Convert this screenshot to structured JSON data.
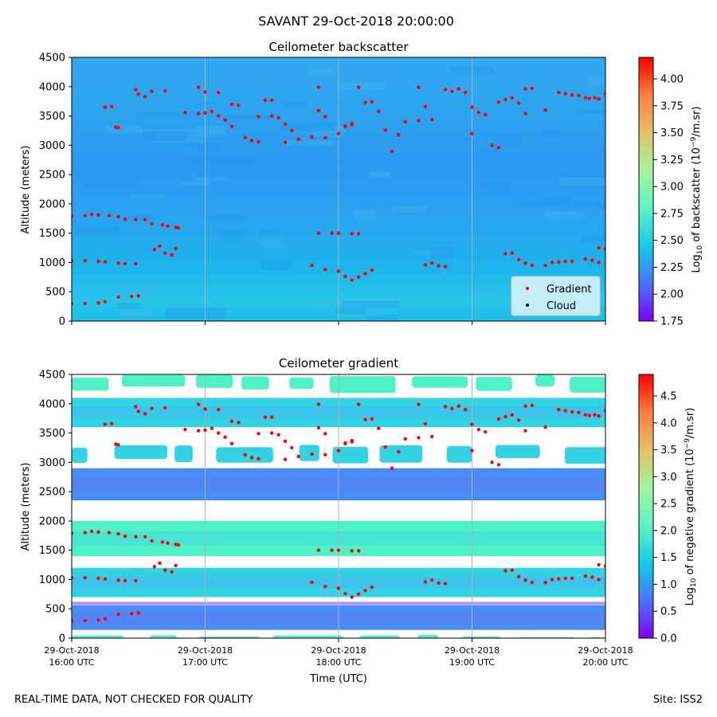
{
  "figure": {
    "suptitle": "SAVANT 29-Oct-2018 20:00:00",
    "footer_left": "REAL-TIME DATA, NOT CHECKED FOR QUALITY",
    "footer_right": "Site: ISS2"
  },
  "colors": {
    "marker_gradient": "#ff0000",
    "marker_cloud": "#000000",
    "colormap": [
      "#8000ff",
      "#4a71fb",
      "#15c9eb",
      "#5ef4c4",
      "#a2f59b",
      "#e4c26a",
      "#ff7d3f",
      "#ff0000"
    ],
    "no_data": "#ffffff"
  },
  "chart_data": [
    {
      "type": "heatmap",
      "title": "Ceilometer backscatter",
      "ylabel": "Altitude (meters)",
      "xlabel": "",
      "xlim": [
        "29-Oct-2018 16:00 UTC",
        "29-Oct-2018 20:00 UTC"
      ],
      "ylim": [
        0,
        4500
      ],
      "yticks": [
        "0",
        "500",
        "1000",
        "1500",
        "2000",
        "2500",
        "3000",
        "3500",
        "4000",
        "4500"
      ],
      "vertical_gridlines_at": [
        "17:00",
        "18:00",
        "19:00"
      ],
      "colorbar": {
        "label": "Log10 of backscatter (10^-9/m.sr)",
        "label_parts": {
          "pre": "Log",
          "sub": "10",
          "mid": " of backscatter (10",
          "sup": "−9",
          "post": "/m.sr)"
        },
        "range": [
          1.75,
          4.2
        ],
        "ticks": [
          "1.75",
          "2.00",
          "2.25",
          "2.50",
          "2.75",
          "3.00",
          "3.25",
          "3.50",
          "3.75",
          "4.00"
        ]
      },
      "field_description": "mostly 2.25-2.50 throughout, slightly higher near 0-200 m and around 600-1000 m",
      "legend": {
        "placement": "lower-right",
        "entries": [
          "Gradient",
          "Cloud"
        ]
      },
      "series": [
        {
          "name": "Gradient",
          "marker": "dot",
          "points_hours_alt": [
            [
              0.0,
              300
            ],
            [
              0.1,
              300
            ],
            [
              0.2,
              310
            ],
            [
              0.25,
              330
            ],
            [
              0.35,
              410
            ],
            [
              0.45,
              420
            ],
            [
              0.5,
              430
            ],
            [
              0.0,
              1030
            ],
            [
              0.1,
              1030
            ],
            [
              0.2,
              1020
            ],
            [
              0.25,
              1010
            ],
            [
              0.35,
              990
            ],
            [
              0.4,
              980
            ],
            [
              0.48,
              980
            ],
            [
              0.0,
              1790
            ],
            [
              0.1,
              1800
            ],
            [
              0.15,
              1820
            ],
            [
              0.2,
              1810
            ],
            [
              0.28,
              1800
            ],
            [
              0.35,
              1780
            ],
            [
              0.4,
              1740
            ],
            [
              0.48,
              1730
            ],
            [
              0.55,
              1730
            ],
            [
              0.6,
              1660
            ],
            [
              0.68,
              1640
            ],
            [
              0.72,
              1620
            ],
            [
              0.78,
              1600
            ],
            [
              0.8,
              1590
            ],
            [
              0.62,
              1220
            ],
            [
              0.66,
              1280
            ],
            [
              0.7,
              1160
            ],
            [
              0.75,
              1130
            ],
            [
              0.78,
              1240
            ],
            [
              0.25,
              3650
            ],
            [
              0.3,
              3660
            ],
            [
              0.33,
              3310
            ],
            [
              0.35,
              3300
            ],
            [
              0.48,
              3950
            ],
            [
              0.5,
              3870
            ],
            [
              0.55,
              3830
            ],
            [
              0.6,
              3920
            ],
            [
              0.7,
              3930
            ],
            [
              0.85,
              3560
            ],
            [
              0.95,
              3540
            ],
            [
              1.0,
              3550
            ],
            [
              1.05,
              3580
            ],
            [
              1.1,
              3500
            ],
            [
              1.15,
              3430
            ],
            [
              1.2,
              3320
            ],
            [
              0.95,
              3990
            ],
            [
              1.0,
              3910
            ],
            [
              1.1,
              3900
            ],
            [
              1.2,
              3700
            ],
            [
              1.25,
              3680
            ],
            [
              1.3,
              3130
            ],
            [
              1.35,
              3080
            ],
            [
              1.4,
              3060
            ],
            [
              1.4,
              3490
            ],
            [
              1.5,
              3500
            ],
            [
              1.55,
              3470
            ],
            [
              1.6,
              3360
            ],
            [
              1.65,
              3250
            ],
            [
              1.45,
              3770
            ],
            [
              1.5,
              3770
            ],
            [
              1.6,
              3050
            ],
            [
              1.7,
              3100
            ],
            [
              1.8,
              3140
            ],
            [
              1.9,
              3130
            ],
            [
              2.0,
              3200
            ],
            [
              2.05,
              3320
            ],
            [
              2.1,
              3350
            ],
            [
              1.85,
              3590
            ],
            [
              1.9,
              3490
            ],
            [
              1.85,
              3990
            ],
            [
              1.8,
              950
            ],
            [
              1.9,
              880
            ],
            [
              2.0,
              850
            ],
            [
              2.05,
              760
            ],
            [
              2.1,
              700
            ],
            [
              2.15,
              750
            ],
            [
              2.2,
              810
            ],
            [
              2.25,
              870
            ],
            [
              1.85,
              1500
            ],
            [
              1.95,
              1500
            ],
            [
              2.0,
              1500
            ],
            [
              2.1,
              1490
            ],
            [
              2.15,
              1490
            ],
            [
              2.05,
              3330
            ],
            [
              2.1,
              3370
            ],
            [
              2.15,
              3990
            ],
            [
              2.2,
              3730
            ],
            [
              2.25,
              3740
            ],
            [
              2.3,
              3580
            ],
            [
              2.35,
              3260
            ],
            [
              2.4,
              2900
            ],
            [
              2.45,
              3180
            ],
            [
              2.5,
              3400
            ],
            [
              2.6,
              3420
            ],
            [
              2.7,
              3440
            ],
            [
              2.6,
              3990
            ],
            [
              2.65,
              3660
            ],
            [
              2.65,
              960
            ],
            [
              2.7,
              990
            ],
            [
              2.75,
              940
            ],
            [
              2.8,
              930
            ],
            [
              2.8,
              3950
            ],
            [
              2.85,
              3920
            ],
            [
              2.9,
              3960
            ],
            [
              2.95,
              3900
            ],
            [
              3.0,
              3650
            ],
            [
              3.05,
              3560
            ],
            [
              3.1,
              3520
            ],
            [
              3.15,
              3000
            ],
            [
              3.2,
              2960
            ],
            [
              3.2,
              3740
            ],
            [
              3.25,
              3780
            ],
            [
              3.3,
              3810
            ],
            [
              3.35,
              3720
            ],
            [
              3.4,
              3540
            ],
            [
              3.0,
              3200
            ],
            [
              3.25,
              1150
            ],
            [
              3.3,
              1160
            ],
            [
              3.35,
              1050
            ],
            [
              3.4,
              990
            ],
            [
              3.45,
              950
            ],
            [
              3.55,
              950
            ],
            [
              3.6,
              1000
            ],
            [
              3.65,
              1010
            ],
            [
              3.7,
              1020
            ],
            [
              3.75,
              1020
            ],
            [
              3.4,
              3960
            ],
            [
              3.45,
              3970
            ],
            [
              3.55,
              3600
            ],
            [
              3.65,
              3900
            ],
            [
              3.7,
              3880
            ],
            [
              3.75,
              3860
            ],
            [
              3.8,
              3850
            ],
            [
              3.85,
              3810
            ],
            [
              3.88,
              3800
            ],
            [
              3.92,
              3810
            ],
            [
              3.95,
              3790
            ],
            [
              4.0,
              3880
            ],
            [
              3.85,
              1060
            ],
            [
              3.9,
              1040
            ],
            [
              3.95,
              1000
            ],
            [
              3.95,
              1250
            ],
            [
              4.0,
              1230
            ]
          ]
        },
        {
          "name": "Cloud",
          "marker": "dot",
          "points_hours_alt": []
        }
      ]
    },
    {
      "type": "heatmap",
      "title": "Ceilometer gradient",
      "ylabel": "Altitude (meters)",
      "xlabel": "Time (UTC)",
      "xlim": [
        "29-Oct-2018 16:00 UTC",
        "29-Oct-2018 20:00 UTC"
      ],
      "ylim": [
        0,
        4500
      ],
      "yticks": [
        "0",
        "500",
        "1000",
        "1500",
        "2000",
        "2500",
        "3000",
        "3500",
        "4000",
        "4500"
      ],
      "xticks": [
        {
          "line1": "29-Oct-2018",
          "line2": "16:00 UTC"
        },
        {
          "line1": "29-Oct-2018",
          "line2": "17:00 UTC"
        },
        {
          "line1": "29-Oct-2018",
          "line2": "18:00 UTC"
        },
        {
          "line1": "29-Oct-2018",
          "line2": "19:00 UTC"
        },
        {
          "line1": "29-Oct-2018",
          "line2": "20:00 UTC"
        }
      ],
      "vertical_gridlines_at": [
        "17:00",
        "18:00",
        "19:00"
      ],
      "colorbar": {
        "label": "Log10 of negative gradient (10^-9/m.sr)",
        "label_parts": {
          "pre": "Log",
          "sub": "10",
          "mid": " of negative gradient (10",
          "sup": "−9",
          "post": "/m.sr)"
        },
        "range": [
          0.0,
          4.9
        ],
        "ticks": [
          "0.0",
          "0.5",
          "1.0",
          "1.5",
          "2.0",
          "2.5",
          "3.0",
          "3.5",
          "4.0",
          "4.5"
        ]
      },
      "field_description": "banded layers of 1.0-2.2 with white no-data gaps",
      "bands_alt": [
        {
          "from": 0,
          "to": 60,
          "value": 1.8
        },
        {
          "from": 140,
          "to": 560,
          "value": 1.2
        },
        {
          "from": 700,
          "to": 1200,
          "value": 1.5
        },
        {
          "from": 1400,
          "to": 2000,
          "value": 1.7
        },
        {
          "from": 2350,
          "to": 2900,
          "value": 1.3
        },
        {
          "from": 3000,
          "to": 3300,
          "value": 1.5
        },
        {
          "from": 3600,
          "to": 4100,
          "value": 1.6
        },
        {
          "from": 4200,
          "to": 4500,
          "value": 1.9
        }
      ],
      "series_ref": "same Gradient points as backscatter panel"
    }
  ]
}
